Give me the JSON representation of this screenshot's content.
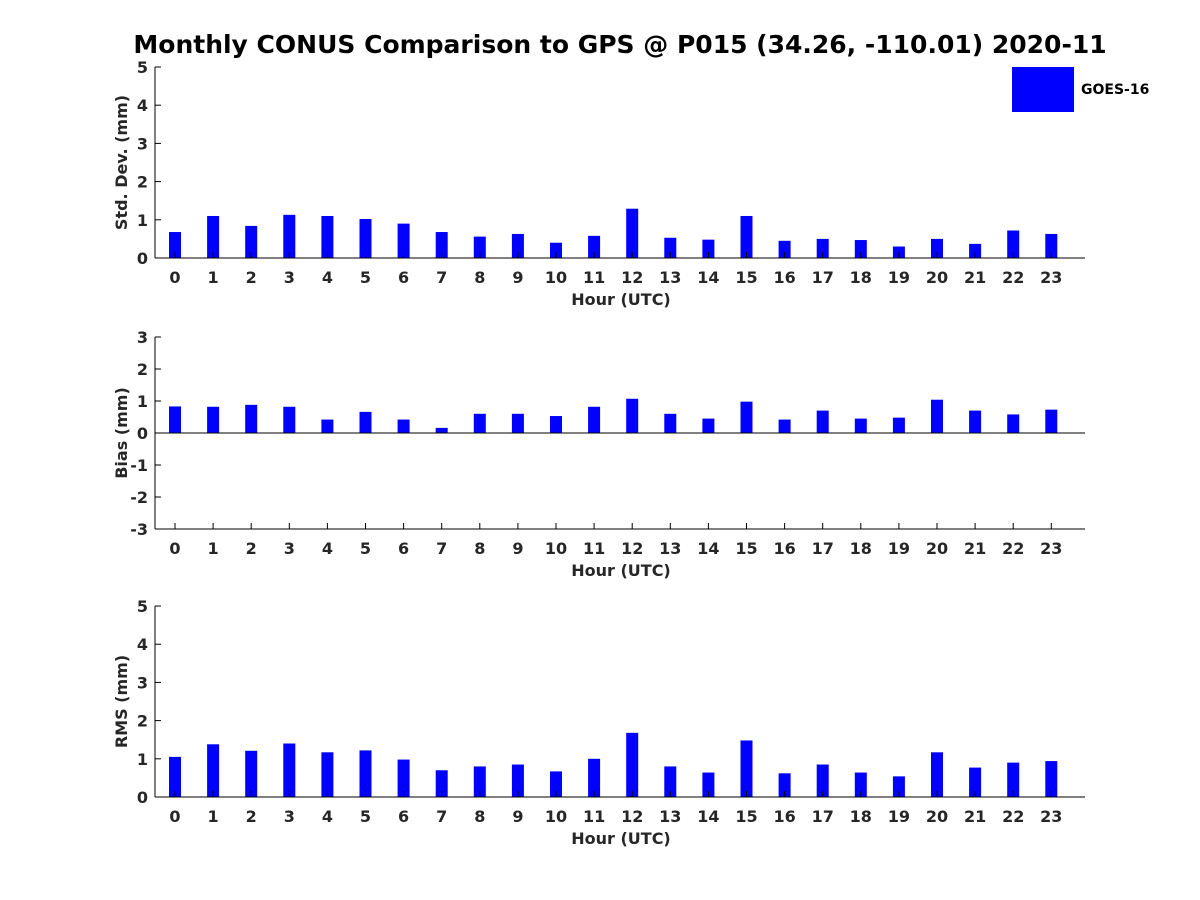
{
  "colors": {
    "bar": "#0000ff",
    "axis": "#000000",
    "text": "#262626"
  },
  "chart_data": {
    "type": "bar",
    "title": "Monthly CONUS Comparison to GPS @ P015 (34.26, -110.01) 2020-11",
    "legend": {
      "placement": "top-right",
      "entries": [
        "GOES-16"
      ]
    },
    "categories": [
      "0",
      "1",
      "2",
      "3",
      "4",
      "5",
      "6",
      "7",
      "8",
      "9",
      "10",
      "11",
      "12",
      "13",
      "14",
      "15",
      "16",
      "17",
      "18",
      "19",
      "20",
      "21",
      "22",
      "23"
    ],
    "panels": [
      {
        "id": "stddev",
        "xlabel": "Hour (UTC)",
        "ylabel": "Std. Dev. (mm)",
        "ylim": [
          0,
          5
        ],
        "yticks": [
          "0",
          "1",
          "2",
          "3",
          "4",
          "5"
        ],
        "series": [
          {
            "name": "GOES-16",
            "values": [
              0.68,
              1.1,
              0.84,
              1.13,
              1.1,
              1.02,
              0.9,
              0.68,
              0.56,
              0.63,
              0.4,
              0.58,
              1.29,
              0.53,
              0.48,
              1.1,
              0.45,
              0.5,
              0.47,
              0.3,
              0.5,
              0.37,
              0.72,
              0.63
            ]
          }
        ]
      },
      {
        "id": "bias",
        "xlabel": "Hour (UTC)",
        "ylabel": "Bias (mm)",
        "ylim": [
          -3,
          3
        ],
        "yticks": [
          "-3",
          "-2",
          "-1",
          "0",
          "1",
          "2",
          "3"
        ],
        "series": [
          {
            "name": "GOES-16",
            "values": [
              0.83,
              0.82,
              0.88,
              0.82,
              0.42,
              0.66,
              0.42,
              0.16,
              0.6,
              0.6,
              0.53,
              0.82,
              1.07,
              0.6,
              0.45,
              0.98,
              0.42,
              0.7,
              0.45,
              0.48,
              1.04,
              0.7,
              0.58,
              0.73
            ]
          }
        ]
      },
      {
        "id": "rms",
        "xlabel": "Hour (UTC)",
        "ylabel": "RMS (mm)",
        "ylim": [
          0,
          5
        ],
        "yticks": [
          "0",
          "1",
          "2",
          "3",
          "4",
          "5"
        ],
        "series": [
          {
            "name": "GOES-16",
            "values": [
              1.05,
              1.38,
              1.21,
              1.4,
              1.17,
              1.22,
              0.98,
              0.7,
              0.8,
              0.85,
              0.67,
              1.0,
              1.68,
              0.8,
              0.64,
              1.48,
              0.62,
              0.85,
              0.64,
              0.54,
              1.17,
              0.77,
              0.9,
              0.94
            ]
          }
        ]
      }
    ]
  }
}
